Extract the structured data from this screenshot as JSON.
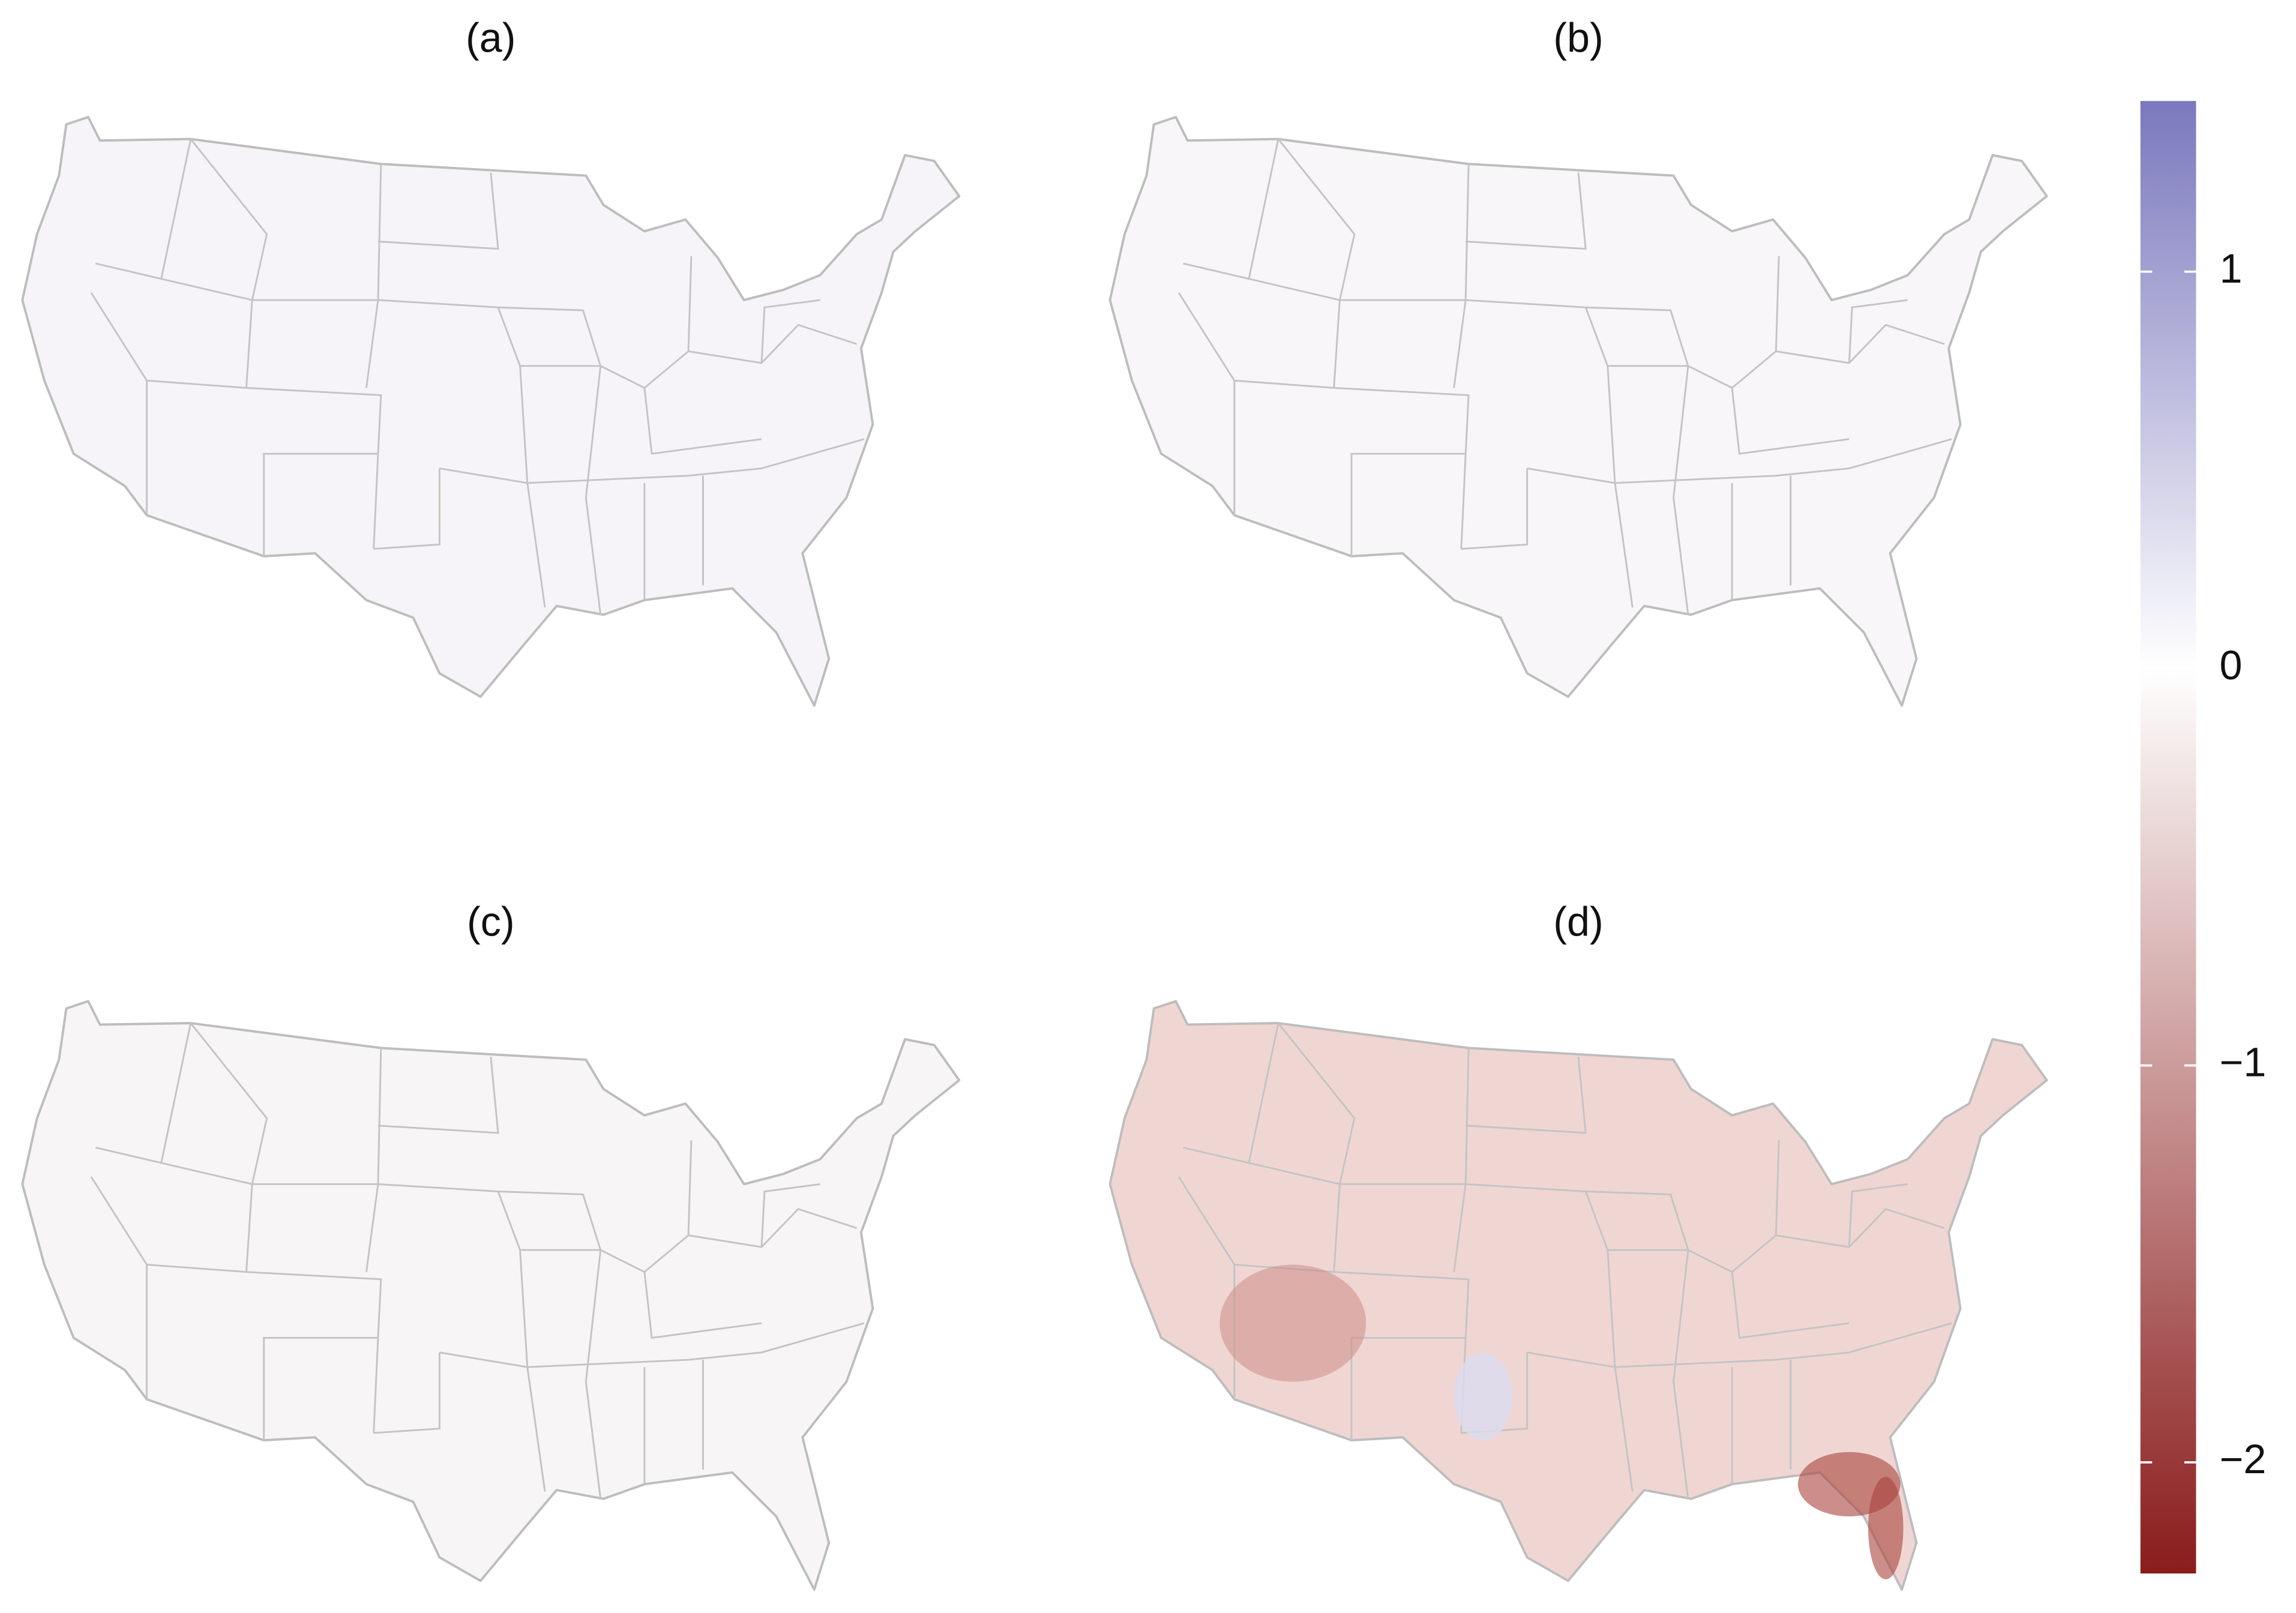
{
  "panels": [
    {
      "label": "(a)"
    },
    {
      "label": "(b)"
    },
    {
      "label": "(c)"
    },
    {
      "label": "(d)"
    }
  ],
  "colorbar": {
    "lim": [
      -2.28,
      1.43
    ],
    "ticks": [
      1,
      0,
      {
        "value": -1,
        "label": "−1"
      },
      {
        "value": -2,
        "label": "−2"
      }
    ],
    "colors": {
      "high": "#7b78bd",
      "mid": "#ffffff",
      "low": "#8a1c1c"
    }
  }
}
